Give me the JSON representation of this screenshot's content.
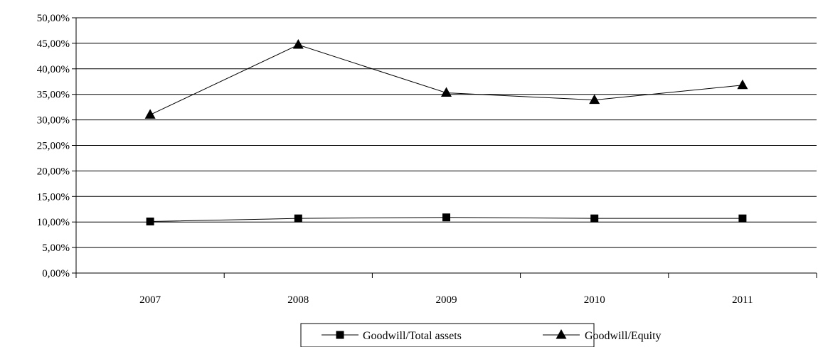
{
  "chart_data": {
    "type": "line",
    "categories": [
      "2007",
      "2008",
      "2009",
      "2010",
      "2011"
    ],
    "y_ticks": [
      "0,00%",
      "5,00%",
      "10,00%",
      "15,00%",
      "20,00%",
      "25,00%",
      "30,00%",
      "35,00%",
      "40,00%",
      "45,00%",
      "50,00%"
    ],
    "ylim": [
      0,
      50
    ],
    "grid": true,
    "legend_placement": "bottom",
    "series": [
      {
        "name": "Goodwill/Total assets",
        "marker": "square",
        "values": [
          10.1,
          10.7,
          10.9,
          10.7,
          10.7
        ]
      },
      {
        "name": "Goodwill/Equity",
        "marker": "triangle",
        "values": [
          31.0,
          44.7,
          35.3,
          33.9,
          36.8
        ]
      }
    ]
  }
}
